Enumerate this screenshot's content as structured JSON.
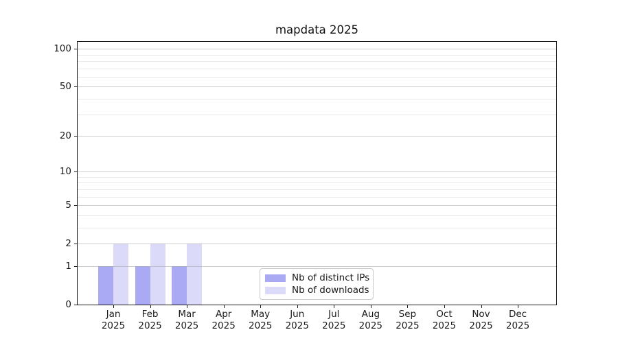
{
  "chart_data": {
    "type": "bar",
    "title": "mapdata 2025",
    "categories": [
      "Jan",
      "Feb",
      "Mar",
      "Apr",
      "May",
      "Jun",
      "Jul",
      "Aug",
      "Sep",
      "Oct",
      "Nov",
      "Dec"
    ],
    "year_label": "2025",
    "series": [
      {
        "name": "Nb of distinct IPs",
        "color": "#a9a9f4",
        "values": [
          1,
          1,
          1,
          0,
          0,
          0,
          0,
          0,
          0,
          0,
          0,
          0
        ]
      },
      {
        "name": "Nb of downloads",
        "color": "#dbdbf9",
        "values": [
          2,
          2,
          2,
          0,
          0,
          0,
          0,
          0,
          0,
          0,
          0,
          0
        ]
      }
    ],
    "yscale": "log1p",
    "ylim": [
      0,
      113.5
    ],
    "y_major_ticks": [
      0,
      1,
      2,
      5,
      10,
      20,
      50,
      100
    ],
    "y_minor_ticks": [
      3,
      4,
      6,
      7,
      8,
      9,
      30,
      40,
      60,
      70,
      80,
      90
    ],
    "grid": "horizontal",
    "legend_position": "lower-center-inside",
    "colors": {
      "major_grid": "#cccccc",
      "minor_grid": "#ebebeb",
      "axis": "#1a1a1a",
      "text": "#1a1a1a",
      "background": "#ffffff"
    }
  }
}
